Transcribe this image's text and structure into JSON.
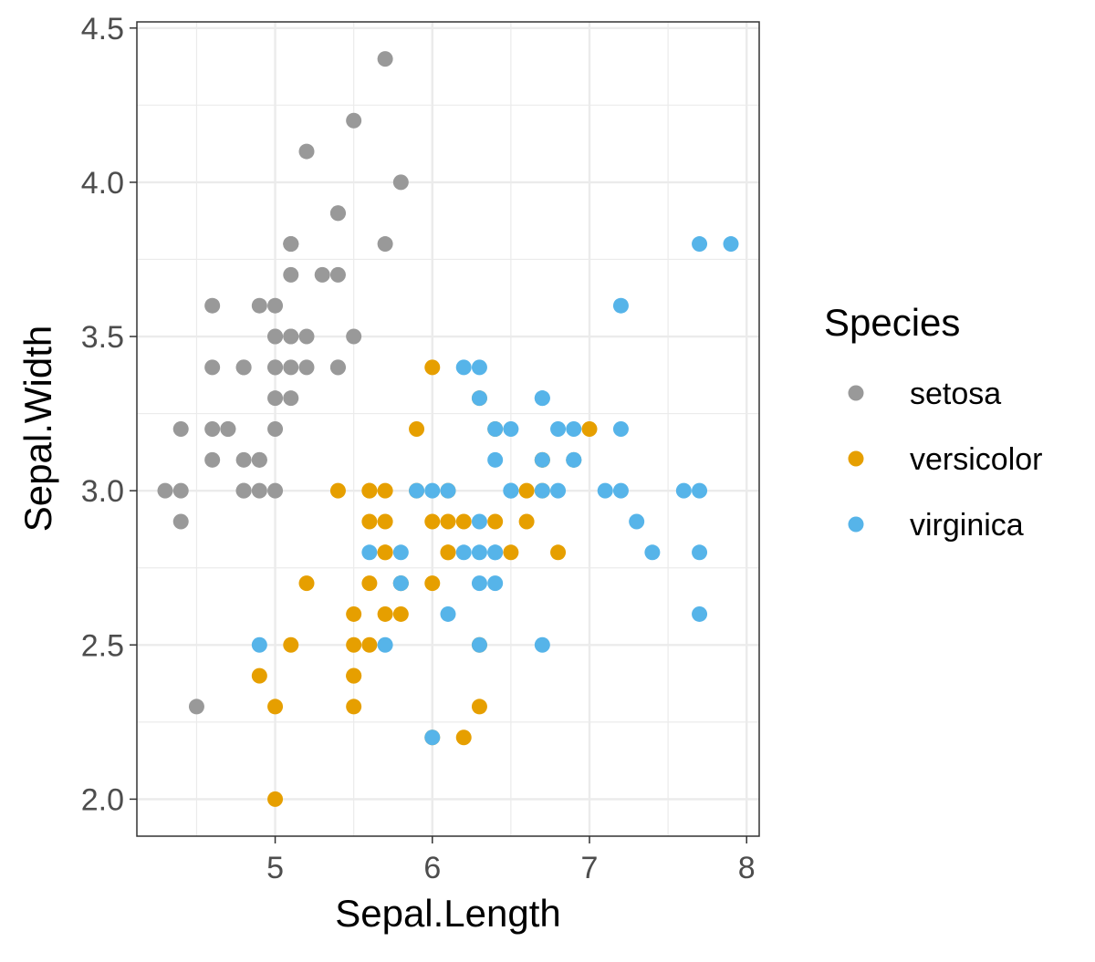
{
  "chart_data": {
    "type": "scatter",
    "title": "",
    "xlabel": "Sepal.Length",
    "ylabel": "Sepal.Width",
    "xlim": [
      4.12,
      8.08
    ],
    "ylim": [
      1.88,
      4.52
    ],
    "xticks": [
      5,
      6,
      7,
      8
    ],
    "yticks": [
      2.0,
      2.5,
      3.0,
      3.5,
      4.0,
      4.5
    ],
    "xtick_labels": [
      "5",
      "6",
      "7",
      "8"
    ],
    "ytick_labels": [
      "2.0",
      "2.5",
      "3.0",
      "3.5",
      "4.0",
      "4.5"
    ],
    "grid": true,
    "legend": {
      "title": "Species",
      "placement": "right"
    },
    "series": [
      {
        "name": "setosa",
        "color": "#999999",
        "points": [
          [
            5.1,
            3.5
          ],
          [
            4.9,
            3.0
          ],
          [
            4.7,
            3.2
          ],
          [
            4.6,
            3.1
          ],
          [
            5.0,
            3.6
          ],
          [
            5.4,
            3.9
          ],
          [
            4.6,
            3.4
          ],
          [
            5.0,
            3.4
          ],
          [
            4.4,
            2.9
          ],
          [
            4.9,
            3.1
          ],
          [
            5.4,
            3.7
          ],
          [
            4.8,
            3.4
          ],
          [
            4.8,
            3.0
          ],
          [
            4.3,
            3.0
          ],
          [
            5.8,
            4.0
          ],
          [
            5.7,
            4.4
          ],
          [
            5.4,
            3.9
          ],
          [
            5.1,
            3.5
          ],
          [
            5.7,
            3.8
          ],
          [
            5.1,
            3.8
          ],
          [
            5.4,
            3.4
          ],
          [
            5.1,
            3.7
          ],
          [
            4.6,
            3.6
          ],
          [
            5.1,
            3.3
          ],
          [
            4.8,
            3.4
          ],
          [
            5.0,
            3.0
          ],
          [
            5.0,
            3.4
          ],
          [
            5.2,
            3.5
          ],
          [
            5.2,
            3.4
          ],
          [
            4.7,
            3.2
          ],
          [
            4.8,
            3.1
          ],
          [
            5.4,
            3.4
          ],
          [
            5.2,
            4.1
          ],
          [
            5.5,
            4.2
          ],
          [
            4.9,
            3.1
          ],
          [
            5.0,
            3.2
          ],
          [
            5.5,
            3.5
          ],
          [
            4.9,
            3.6
          ],
          [
            4.4,
            3.0
          ],
          [
            5.1,
            3.4
          ],
          [
            5.0,
            3.5
          ],
          [
            4.5,
            2.3
          ],
          [
            4.4,
            3.2
          ],
          [
            5.0,
            3.5
          ],
          [
            5.1,
            3.8
          ],
          [
            4.8,
            3.0
          ],
          [
            5.1,
            3.8
          ],
          [
            4.6,
            3.2
          ],
          [
            5.3,
            3.7
          ],
          [
            5.0,
            3.3
          ]
        ]
      },
      {
        "name": "versicolor",
        "color": "#E69F00",
        "points": [
          [
            7.0,
            3.2
          ],
          [
            6.4,
            3.2
          ],
          [
            6.9,
            3.1
          ],
          [
            5.5,
            2.3
          ],
          [
            6.5,
            2.8
          ],
          [
            5.7,
            2.8
          ],
          [
            6.3,
            3.3
          ],
          [
            4.9,
            2.4
          ],
          [
            6.6,
            2.9
          ],
          [
            5.2,
            2.7
          ],
          [
            5.0,
            2.0
          ],
          [
            5.9,
            3.0
          ],
          [
            6.0,
            2.2
          ],
          [
            6.1,
            2.9
          ],
          [
            5.6,
            2.9
          ],
          [
            6.7,
            3.1
          ],
          [
            5.6,
            3.0
          ],
          [
            5.8,
            2.7
          ],
          [
            6.2,
            2.2
          ],
          [
            5.6,
            2.5
          ],
          [
            5.9,
            3.2
          ],
          [
            6.1,
            2.8
          ],
          [
            6.3,
            2.5
          ],
          [
            6.1,
            2.8
          ],
          [
            6.4,
            2.9
          ],
          [
            6.6,
            3.0
          ],
          [
            6.8,
            2.8
          ],
          [
            6.7,
            3.0
          ],
          [
            6.0,
            2.9
          ],
          [
            5.7,
            2.6
          ],
          [
            5.5,
            2.4
          ],
          [
            5.5,
            2.4
          ],
          [
            5.8,
            2.7
          ],
          [
            6.0,
            2.7
          ],
          [
            5.4,
            3.0
          ],
          [
            6.0,
            3.4
          ],
          [
            6.7,
            3.1
          ],
          [
            6.3,
            2.3
          ],
          [
            5.6,
            3.0
          ],
          [
            5.5,
            2.5
          ],
          [
            5.5,
            2.6
          ],
          [
            6.1,
            3.0
          ],
          [
            5.8,
            2.6
          ],
          [
            5.0,
            2.3
          ],
          [
            5.6,
            2.7
          ],
          [
            5.7,
            3.0
          ],
          [
            5.7,
            2.9
          ],
          [
            6.2,
            2.9
          ],
          [
            5.1,
            2.5
          ],
          [
            5.7,
            2.8
          ]
        ]
      },
      {
        "name": "virginica",
        "color": "#56B4E9",
        "points": [
          [
            6.3,
            3.3
          ],
          [
            5.8,
            2.7
          ],
          [
            7.1,
            3.0
          ],
          [
            6.3,
            2.9
          ],
          [
            6.5,
            3.0
          ],
          [
            7.6,
            3.0
          ],
          [
            4.9,
            2.5
          ],
          [
            7.3,
            2.9
          ],
          [
            6.7,
            2.5
          ],
          [
            7.2,
            3.6
          ],
          [
            6.5,
            3.2
          ],
          [
            6.4,
            2.7
          ],
          [
            6.8,
            3.0
          ],
          [
            5.7,
            2.5
          ],
          [
            5.8,
            2.8
          ],
          [
            6.4,
            3.2
          ],
          [
            6.5,
            3.0
          ],
          [
            7.7,
            3.8
          ],
          [
            7.7,
            2.6
          ],
          [
            6.0,
            2.2
          ],
          [
            6.9,
            3.2
          ],
          [
            5.6,
            2.8
          ],
          [
            7.7,
            2.8
          ],
          [
            6.3,
            2.7
          ],
          [
            6.7,
            3.3
          ],
          [
            7.2,
            3.2
          ],
          [
            6.2,
            2.8
          ],
          [
            6.1,
            3.0
          ],
          [
            6.4,
            2.8
          ],
          [
            7.2,
            3.0
          ],
          [
            7.4,
            2.8
          ],
          [
            7.9,
            3.8
          ],
          [
            6.4,
            2.8
          ],
          [
            6.3,
            2.8
          ],
          [
            6.1,
            2.6
          ],
          [
            7.7,
            3.0
          ],
          [
            6.3,
            3.4
          ],
          [
            6.4,
            3.1
          ],
          [
            6.0,
            3.0
          ],
          [
            6.9,
            3.1
          ],
          [
            6.7,
            3.1
          ],
          [
            6.9,
            3.1
          ],
          [
            5.8,
            2.7
          ],
          [
            6.8,
            3.2
          ],
          [
            6.7,
            3.3
          ],
          [
            6.7,
            3.0
          ],
          [
            6.3,
            2.5
          ],
          [
            6.5,
            3.0
          ],
          [
            6.2,
            3.4
          ],
          [
            5.9,
            3.0
          ]
        ]
      }
    ]
  }
}
